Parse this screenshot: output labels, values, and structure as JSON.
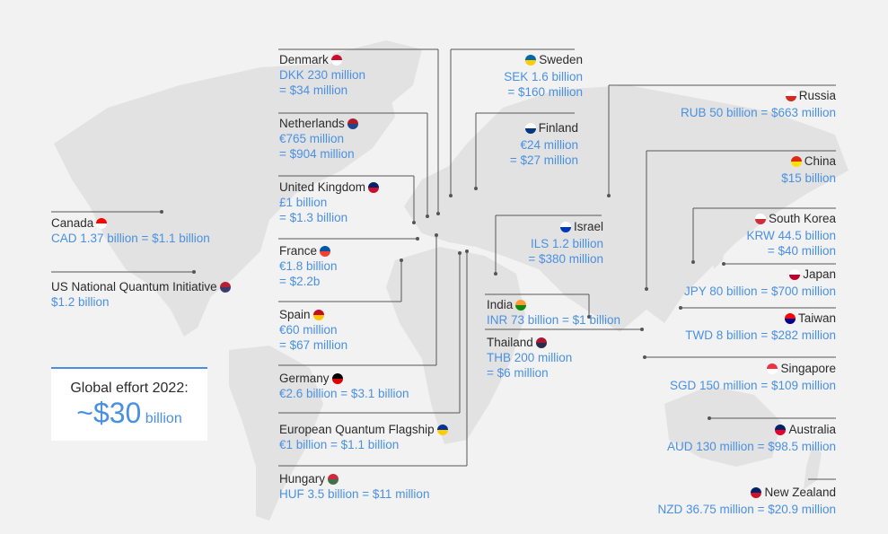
{
  "countries": [
    {
      "name": "Denmark",
      "amount": "DKK 230 million\n= $34 million",
      "flag": [
        "#c8102e",
        "#ffffff"
      ]
    },
    {
      "name": "Sweden",
      "amount": "SEK 1.6 billion\n= $160 million",
      "flag": [
        "#006aa7",
        "#fecc00"
      ]
    },
    {
      "name": "Netherlands",
      "amount": "€765 million\n= $904 million",
      "flag": [
        "#ae1c28",
        "#21468b"
      ]
    },
    {
      "name": "Finland",
      "amount": "€24 million\n= $27 million",
      "flag": [
        "#ffffff",
        "#003580"
      ]
    },
    {
      "name": "Russia",
      "amount": "RUB 50 billion = $663 million",
      "flag": [
        "#ffffff",
        "#d52b1e"
      ]
    },
    {
      "name": "United Kingdom",
      "amount": "£1 billion\n= $1.3 billion",
      "flag": [
        "#012169",
        "#c8102e"
      ]
    },
    {
      "name": "China",
      "amount": "$15 billion",
      "flag": [
        "#de2910",
        "#ffde00"
      ]
    },
    {
      "name": "Canada",
      "amount": "CAD 1.37 billion = $1.1 billion",
      "flag": [
        "#ff0000",
        "#ffffff"
      ]
    },
    {
      "name": "Israel",
      "amount": "ILS 1.2 billion\n= $380 million",
      "flag": [
        "#ffffff",
        "#0038b8"
      ]
    },
    {
      "name": "South Korea",
      "amount": "KRW 44.5 billion\n= $40 million",
      "flag": [
        "#ffffff",
        "#cd2e3a"
      ]
    },
    {
      "name": "France",
      "amount": "€1.8 billion\n= $2.2b",
      "flag": [
        "#0055a4",
        "#ef4135"
      ]
    },
    {
      "name": "Japan",
      "amount": "JPY 80 billion = $700 million",
      "flag": [
        "#ffffff",
        "#bc002d"
      ]
    },
    {
      "name": "US National Quantum Initiative",
      "amount": "$1.2 billion",
      "flag": [
        "#b22234",
        "#3c3b6e"
      ]
    },
    {
      "name": "India",
      "amount": "INR 73 billion = $1 billion",
      "flag": [
        "#ff9933",
        "#138808"
      ]
    },
    {
      "name": "Spain",
      "amount": "€60 million\n= $67 million",
      "flag": [
        "#c60b1e",
        "#ffc400"
      ]
    },
    {
      "name": "Taiwan",
      "amount": "TWD 8 billion = $282 million",
      "flag": [
        "#fe0000",
        "#000095"
      ]
    },
    {
      "name": "Thailand",
      "amount": "THB 200 million\n= $6 million",
      "flag": [
        "#a51931",
        "#2d2a4a"
      ]
    },
    {
      "name": "Singapore",
      "amount": "SGD 150 million = $109 million",
      "flag": [
        "#ef3340",
        "#ffffff"
      ]
    },
    {
      "name": "Germany",
      "amount": "€2.6 billion = $3.1 billion",
      "flag": [
        "#000000",
        "#dd0000"
      ]
    },
    {
      "name": "Australia",
      "amount": "AUD 130 million = $98.5 million",
      "flag": [
        "#012169",
        "#e4002b"
      ]
    },
    {
      "name": "European Quantum Flagship",
      "amount": "€1 billion = $1.1 billion",
      "flag": [
        "#003399",
        "#ffcc00"
      ]
    },
    {
      "name": "Hungary",
      "amount": "HUF 3.5 billion = $11 million",
      "flag": [
        "#cd2a3e",
        "#436f4d"
      ]
    },
    {
      "name": "New Zealand",
      "amount": "NZD 36.75 million = $20.9 million",
      "flag": [
        "#012169",
        "#cc142b"
      ]
    }
  ],
  "summary": {
    "title": "Global effort 2022:",
    "prefix": "~$30",
    "unit": "billion"
  },
  "colors": {
    "accent": "#4a90e2",
    "map": "#e2e2e2",
    "background": "#f2f2f2",
    "leader": "#555555"
  }
}
